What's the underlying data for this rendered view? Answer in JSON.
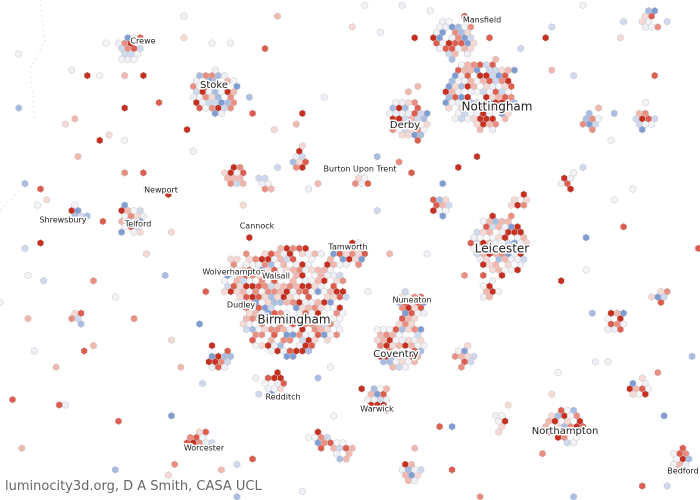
{
  "places": [
    "Crewe",
    "Mansfield",
    "Stoke",
    "Nottingham",
    "Derby",
    "Burton Upon Trent",
    "Newport",
    "Shrewsbury",
    "Telford",
    "Cannock",
    "Tamworth",
    "Leicester",
    "Wolverhampton",
    "Walsall",
    "Nuneaton",
    "Dudley",
    "Birmingham",
    "Coventry",
    "Redditch",
    "Warwick",
    "Northampton",
    "Worcester",
    "Bedford"
  ],
  "credit": "luminocity3d.org, D A Smith, CASA UCL"
}
